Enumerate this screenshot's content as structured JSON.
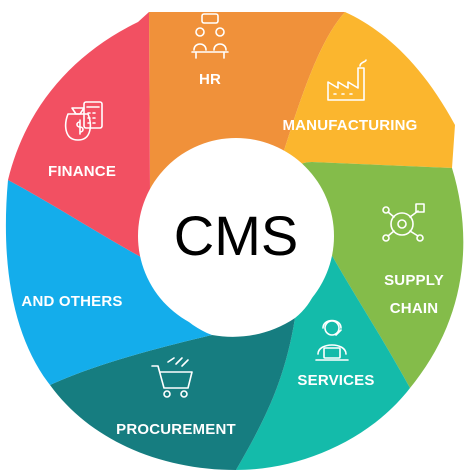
{
  "center": {
    "title": "CMS"
  },
  "segments": [
    {
      "id": "hr",
      "label": "HR",
      "color": "#F0913A",
      "icon": "meeting-people-icon"
    },
    {
      "id": "manufacturing",
      "label": "MANUFACTURING",
      "color": "#FBB62E",
      "icon": "factory-icon"
    },
    {
      "id": "supply",
      "label_line1": "SUPPLY",
      "label_line2": "CHAIN",
      "color": "#84BC4A",
      "icon": "gears-network-icon"
    },
    {
      "id": "services",
      "label": "SERVICES",
      "color": "#14BBAA",
      "icon": "support-agent-icon"
    },
    {
      "id": "procurement",
      "label": "PROCUREMENT",
      "color": "#167D80",
      "icon": "shopping-cart-icon"
    },
    {
      "id": "others",
      "label": "AND OTHERS",
      "color": "#14ADEB",
      "icon": ""
    },
    {
      "id": "finance",
      "label": "FINANCE",
      "color": "#F25062",
      "icon": "money-calculator-icon"
    }
  ]
}
